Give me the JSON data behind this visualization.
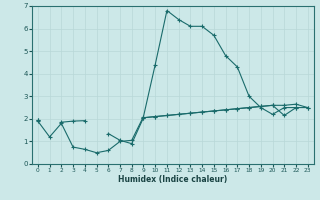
{
  "xlabel": "Humidex (Indice chaleur)",
  "ylabel": "",
  "xlim": [
    -0.5,
    23.5
  ],
  "ylim": [
    0,
    7
  ],
  "xticks": [
    0,
    1,
    2,
    3,
    4,
    5,
    6,
    7,
    8,
    9,
    10,
    11,
    12,
    13,
    14,
    15,
    16,
    17,
    18,
    19,
    20,
    21,
    22,
    23
  ],
  "yticks": [
    0,
    1,
    2,
    3,
    4,
    5,
    6,
    7
  ],
  "bg_color": "#cce8e8",
  "grid_color": "#b8d8d8",
  "line_color": "#1a6b6b",
  "line1_y": [
    1.9,
    1.2,
    1.8,
    0.75,
    0.65,
    0.5,
    0.6,
    1.0,
    1.05,
    2.1,
    4.4,
    6.8,
    6.4,
    6.1,
    6.1,
    5.7,
    4.8,
    4.3,
    3.0,
    2.5,
    2.2,
    2.5,
    2.5,
    null
  ],
  "line2_y": [
    1.95,
    null,
    null,
    null,
    null,
    null,
    null,
    null,
    null,
    2.05,
    2.1,
    2.15,
    2.2,
    2.25,
    2.3,
    2.35,
    2.4,
    2.45,
    2.5,
    2.55,
    2.6,
    2.6,
    2.65,
    2.5
  ],
  "line3_y": [
    1.95,
    null,
    1.85,
    1.9,
    1.92,
    null,
    1.35,
    1.05,
    0.9,
    2.05,
    2.1,
    2.15,
    2.2,
    2.25,
    2.3,
    2.35,
    2.4,
    2.45,
    2.5,
    2.55,
    2.6,
    2.15,
    2.5,
    2.5
  ]
}
